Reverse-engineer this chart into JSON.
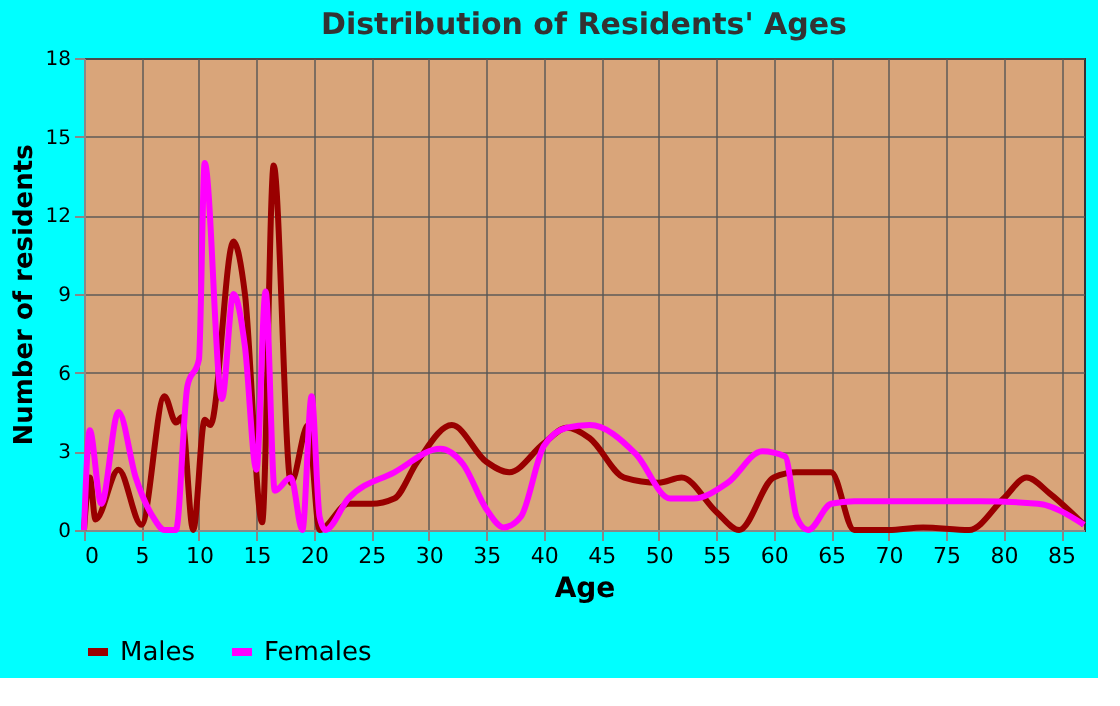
{
  "chart_data": {
    "type": "line",
    "title": "Distribution of Residents' Ages",
    "xlabel": "Age",
    "ylabel": "Number of residents",
    "xlim": [
      0,
      87
    ],
    "xticks": [
      0,
      5,
      10,
      15,
      20,
      25,
      30,
      35,
      40,
      45,
      50,
      55,
      60,
      65,
      70,
      75,
      80,
      85
    ],
    "ylim": [
      0,
      18
    ],
    "yticks": [
      0,
      3,
      6,
      9,
      12,
      15,
      18
    ],
    "grid": true,
    "legend": "bottom",
    "marker": "none",
    "line_style": "solid",
    "series": [
      {
        "name": "Males",
        "color": "#990000",
        "x": [
          0,
          0.5,
          1,
          3,
          5,
          7,
          8,
          8.5,
          9.5,
          10.5,
          11,
          13,
          14,
          15.5,
          16.5,
          18,
          19.5,
          20.5,
          23,
          25,
          27,
          29,
          32,
          35,
          37,
          40,
          42,
          44,
          47,
          50,
          52,
          55,
          57,
          60,
          62,
          65,
          67,
          70,
          73,
          77,
          80,
          82,
          84,
          87
        ],
        "values": [
          0,
          2,
          0.4,
          2.3,
          0.2,
          5.1,
          4.1,
          4.3,
          0,
          4.2,
          4,
          11,
          9,
          0.3,
          13.9,
          1.8,
          4,
          0,
          1,
          1,
          1.2,
          2.6,
          4,
          2.6,
          2.2,
          3.3,
          3.9,
          3.5,
          2,
          1.8,
          2,
          0.7,
          0,
          2,
          2.2,
          2.2,
          0,
          0,
          0.1,
          0,
          1.2,
          2,
          1.4,
          0.2
        ]
      },
      {
        "name": "Females",
        "color": "#ff00ff",
        "x": [
          0,
          0.5,
          1.5,
          3,
          4.5,
          6,
          7,
          8,
          9,
          10,
          10.5,
          12,
          13,
          14,
          15,
          15.8,
          16.6,
          18,
          19,
          19.8,
          20.5,
          21,
          23,
          27,
          31,
          33,
          35,
          36.5,
          38,
          40,
          42,
          44,
          48,
          51,
          53,
          56,
          59,
          61,
          62,
          63,
          65,
          67,
          78,
          83,
          87
        ],
        "values": [
          0,
          3.8,
          1,
          4.5,
          2,
          0.5,
          0,
          0,
          5.5,
          6.5,
          14,
          5,
          9,
          7,
          2.3,
          9.1,
          1.5,
          2,
          0,
          5.1,
          0.5,
          0,
          1.2,
          2.2,
          3.1,
          2.5,
          0.8,
          0.1,
          0.5,
          3.2,
          3.9,
          4,
          2.9,
          1.2,
          1.2,
          1.8,
          3,
          2.8,
          0.5,
          0,
          1,
          1.1,
          1.1,
          1,
          0.2
        ]
      }
    ]
  }
}
